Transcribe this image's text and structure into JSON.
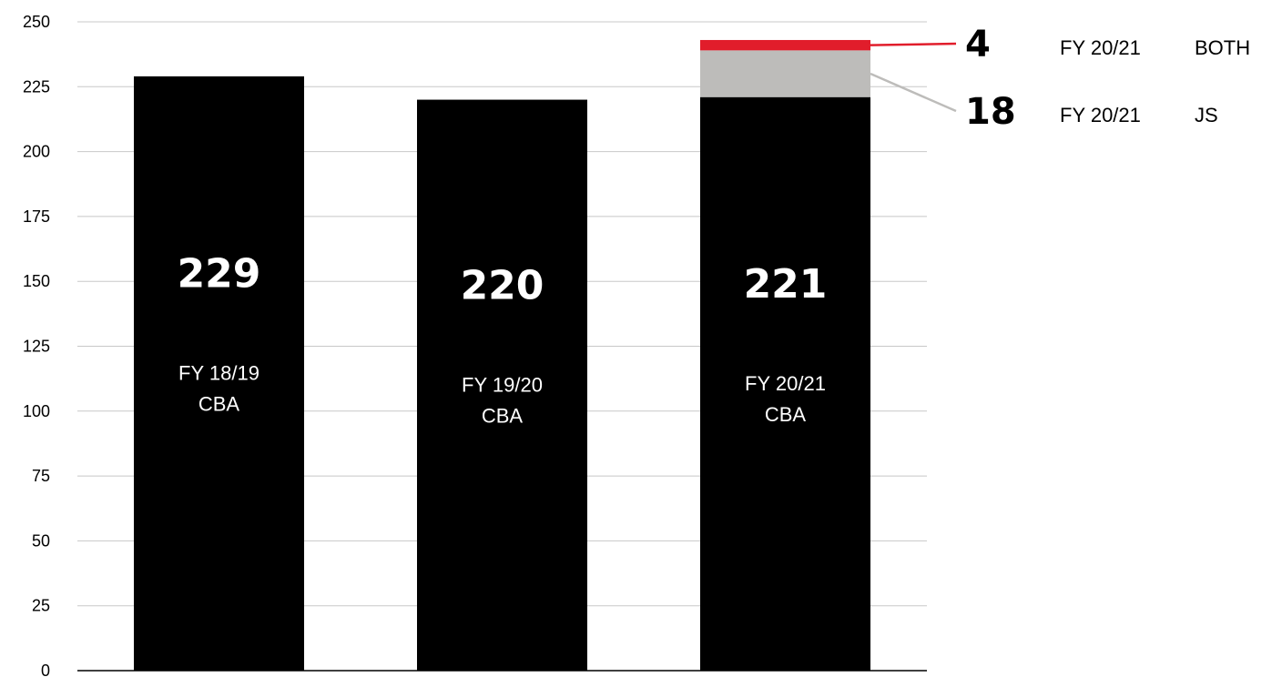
{
  "chart_data": {
    "type": "bar",
    "stacked": true,
    "title": "",
    "xlabel": "",
    "ylabel": "",
    "ylim": [
      0,
      250
    ],
    "yticks": [
      0,
      25,
      50,
      75,
      100,
      125,
      150,
      175,
      200,
      225,
      250
    ],
    "grid": true,
    "legend": "none",
    "categories": [
      "FY 18/19\nCBA",
      "FY 19/20\nCBA",
      "FY 20/21\nCBA"
    ],
    "category_lines": [
      [
        "FY 18/19",
        "CBA"
      ],
      [
        "FY 19/20",
        "CBA"
      ],
      [
        "FY 20/21",
        "CBA"
      ]
    ],
    "series": [
      {
        "key": "cba",
        "values": [
          229,
          220,
          221
        ],
        "color": "#000000",
        "labels": [
          "229",
          "220",
          "221"
        ]
      },
      {
        "key": "js",
        "values": [
          0,
          0,
          18
        ],
        "color": "#bdbcba"
      },
      {
        "key": "both",
        "values": [
          0,
          0,
          4
        ],
        "color": "#e11d2b"
      }
    ],
    "annotations": [
      {
        "series": "both",
        "value": "4",
        "label": "FY 20/21",
        "label2": "BOTH",
        "line_color": "#e11d2b"
      },
      {
        "series": "js",
        "value": "18",
        "label": "FY 20/21",
        "label2": "JS",
        "line_color": "#bdbcba"
      }
    ],
    "colors": {
      "grid": "#c8c8c8",
      "axis": "#000000"
    }
  }
}
